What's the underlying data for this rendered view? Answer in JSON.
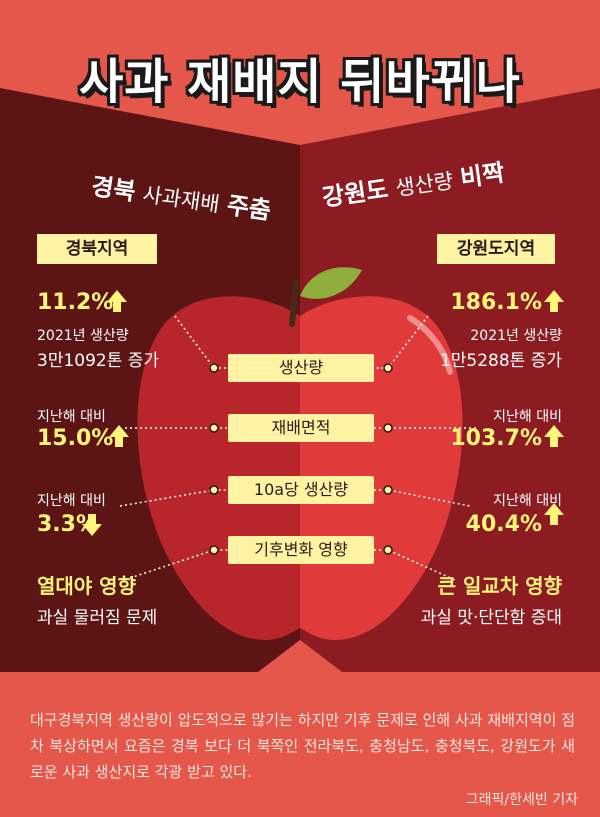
{
  "title": "사과 재배지 뒤바뀌나",
  "subtitle_left": {
    "pre": "경북",
    "mid": "사과재배",
    "post": "주춤"
  },
  "subtitle_right": {
    "pre": "강원도",
    "mid": "생산량",
    "post": "비짝"
  },
  "left": {
    "region": "경북지역",
    "production_pct": "11.2%",
    "production_note": "2021년 생산량",
    "production_amount": "3만1092톤 증가",
    "area_note": "지난해 대비",
    "area_pct": "15.0%",
    "yield_note": "지난해 대비",
    "yield_pct": "3.3%",
    "impact_title": "열대야 영향",
    "impact_desc": "과실 물러짐 문제"
  },
  "right": {
    "region": "강원도지역",
    "production_pct": "186.1%",
    "production_note": "2021년 생산량",
    "production_amount": "1만5288톤 증가",
    "area_note": "지난해 대비",
    "area_pct": "103.7%",
    "yield_note": "지난해 대비",
    "yield_pct": "40.4%",
    "impact_title": "큰 일교차 영향",
    "impact_desc": "과실 맛·단단함 증대"
  },
  "center_labels": [
    "생산량",
    "재배면적",
    "10a당 생산량",
    "기후변화 영향"
  ],
  "bottom_text": "대구경북지역 생산량이 압도적으로 많기는 하지만 기후 문제로 인해 사과 재배지역이 점차 북상하면서 요즘은 경북 보다 더 북쪽인 전라북도, 충청남도, 충청북도, 강원도가 새로운 사과 생산지로 각광 받고 있다.",
  "credit": "그래픽/한세빈 기자",
  "colors": {
    "left_panel": "#5c1414",
    "right_panel": "#8c1c22",
    "apple_left": "#b8262c",
    "apple_right": "#e03a3a",
    "leaf": "#8fae3e",
    "label_bg": "#fdf3a2",
    "highlight_text": "#fff57a",
    "background": "#e5574a"
  }
}
